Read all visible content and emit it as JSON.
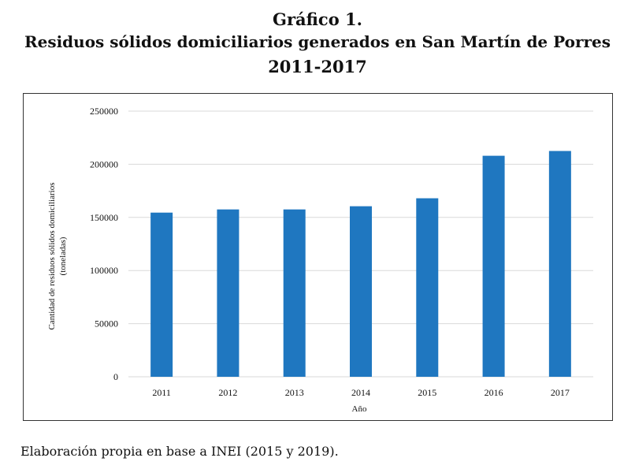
{
  "header": {
    "label": "Gráfico 1.",
    "title": "Residuos sólidos domiciliarios generados en San Martín de Porres",
    "period": "2011-2017"
  },
  "chart_data": {
    "type": "bar",
    "categories": [
      "2011",
      "2012",
      "2013",
      "2014",
      "2015",
      "2016",
      "2017"
    ],
    "values": [
      154500,
      157500,
      157500,
      160500,
      168000,
      208000,
      212500
    ],
    "xlabel": "Año",
    "ylabel_line1": "Cantidad de residuos sólidos domiciliarios",
    "ylabel_line2": "(toneladas)",
    "ylim": [
      0,
      250000
    ],
    "yticks": [
      "0",
      "50000",
      "100000",
      "150000",
      "200000",
      "250000"
    ],
    "bar_color": "#1f77c0",
    "grid": true,
    "grid_color": "#d9d9d9"
  },
  "footer": {
    "source": "Elaboración propia en base a INEI (2015 y 2019)."
  }
}
